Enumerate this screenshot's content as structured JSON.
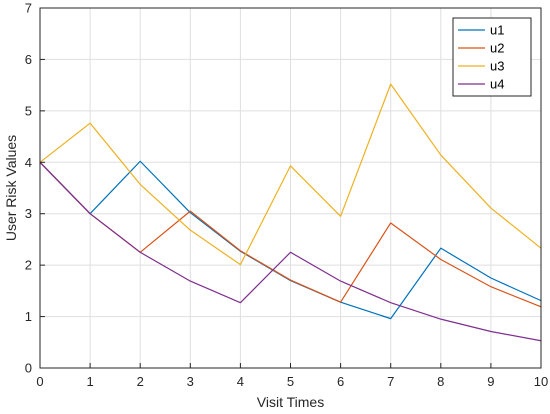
{
  "chart_data": {
    "type": "line",
    "xlabel": "Visit Times",
    "ylabel": "User Risk Values",
    "xlim": [
      0,
      10
    ],
    "ylim": [
      0,
      7
    ],
    "xticks": [
      "0",
      "1",
      "2",
      "3",
      "4",
      "5",
      "6",
      "7",
      "8",
      "9",
      "10"
    ],
    "yticks": [
      "0",
      "1",
      "2",
      "3",
      "4",
      "5",
      "6",
      "7"
    ],
    "grid": true,
    "legend_position": "top-right",
    "x": [
      0,
      1,
      2,
      3,
      4,
      5,
      6,
      7,
      8,
      9,
      10
    ],
    "series": [
      {
        "name": "u1",
        "color": "#0072BD",
        "values": [
          4.0,
          3.0,
          4.02,
          3.02,
          2.27,
          1.7,
          1.28,
          0.96,
          2.33,
          1.75,
          1.31
        ]
      },
      {
        "name": "u2",
        "color": "#D95319",
        "values": [
          4.0,
          3.0,
          2.25,
          3.05,
          2.28,
          1.71,
          1.28,
          2.82,
          2.11,
          1.58,
          1.19
        ]
      },
      {
        "name": "u3",
        "color": "#EDB120",
        "values": [
          4.0,
          4.76,
          3.57,
          2.68,
          2.01,
          3.93,
          2.95,
          5.52,
          4.14,
          3.11,
          2.33
        ]
      },
      {
        "name": "u4",
        "color": "#7E2F8E",
        "values": [
          4.0,
          3.0,
          2.25,
          1.69,
          1.27,
          2.25,
          1.69,
          1.27,
          0.95,
          0.71,
          0.53
        ]
      }
    ]
  }
}
